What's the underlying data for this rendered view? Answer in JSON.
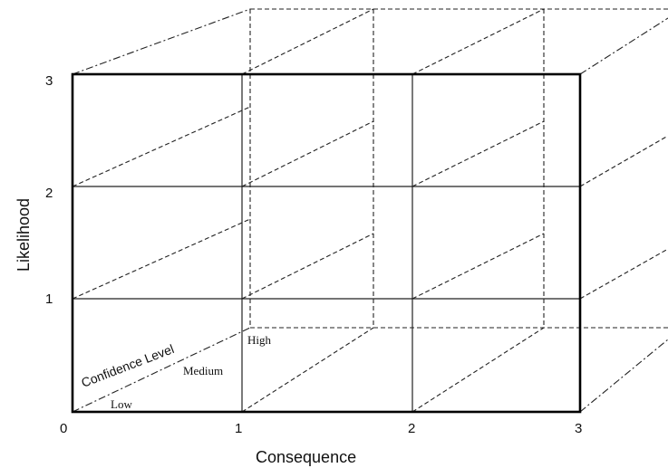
{
  "diagram": {
    "x_axis": {
      "title": "Consequence",
      "ticks": [
        "0",
        "1",
        "2",
        "3"
      ]
    },
    "y_axis": {
      "title": "Likelihood",
      "ticks": [
        "1",
        "2",
        "3"
      ]
    },
    "confidence_axis": {
      "title": "Confidence Level",
      "levels": [
        "Low",
        "Medium",
        "High"
      ]
    }
  }
}
